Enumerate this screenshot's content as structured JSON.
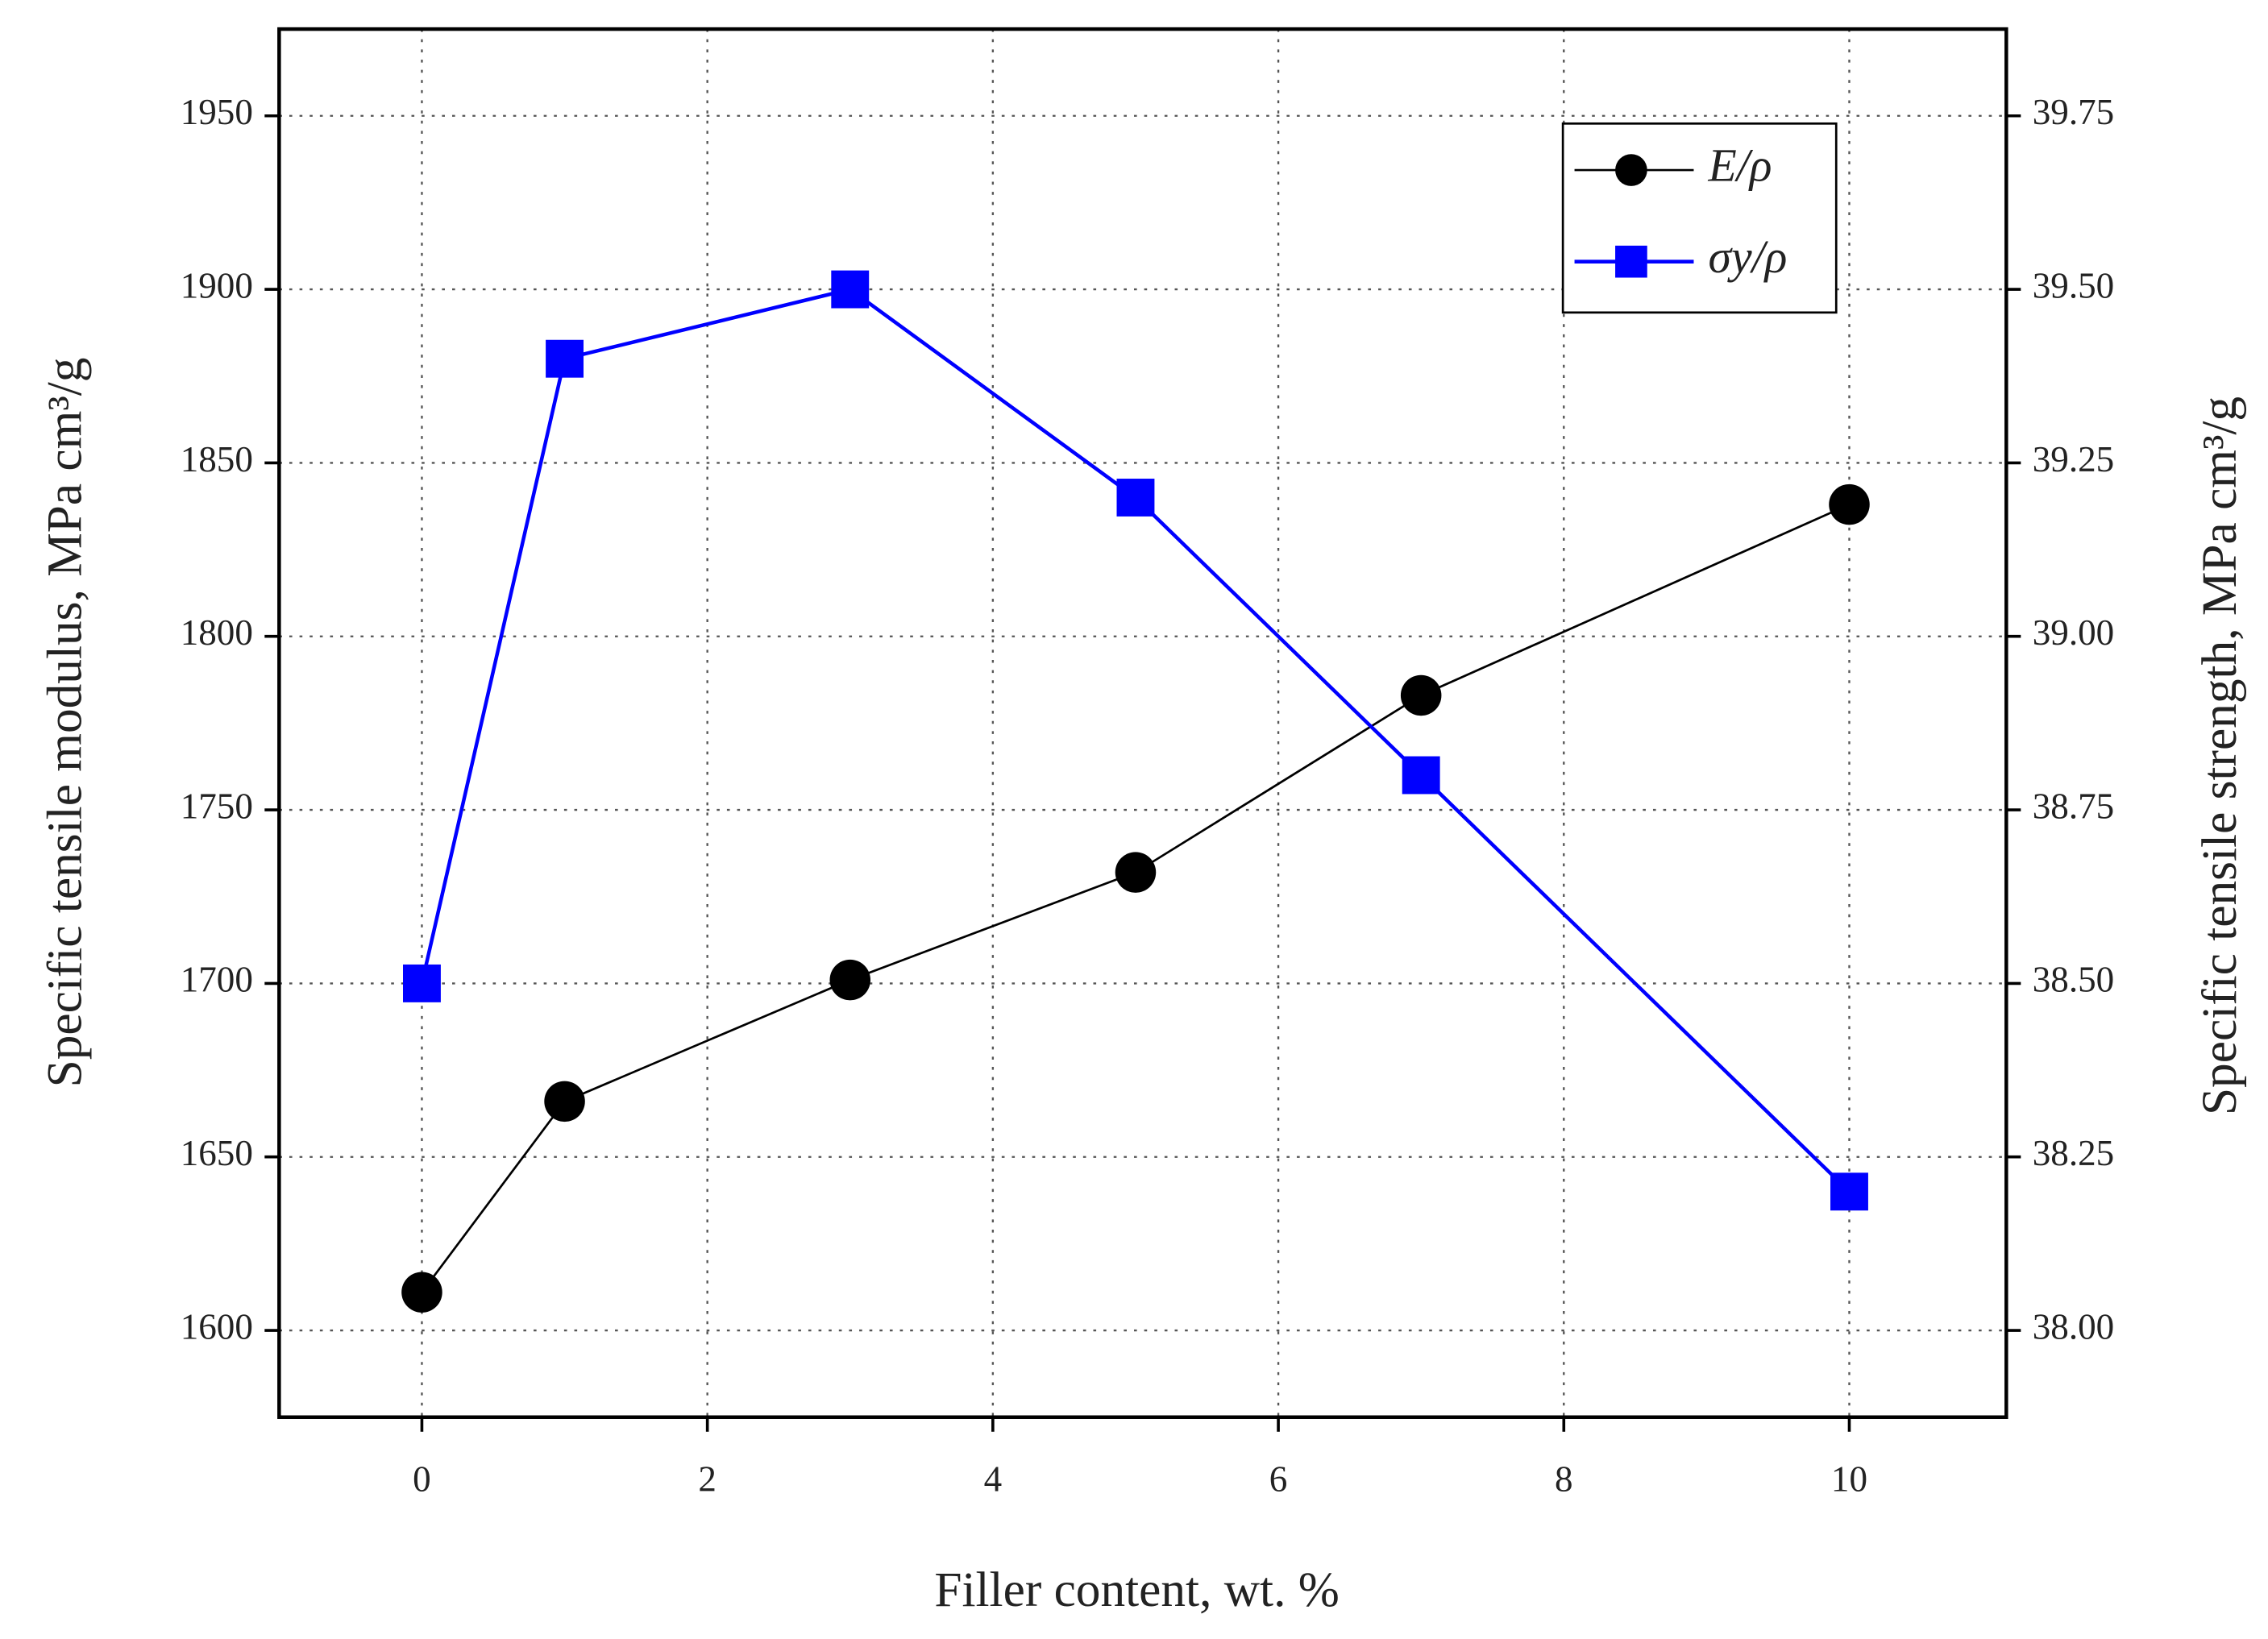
{
  "chart_data": {
    "type": "line",
    "x_label": "Filler content, wt. %",
    "y_label": "Specific tensile modulus, MPa cm³/g",
    "y2_label": "Specific tensile strength, MPa cm³/g",
    "x": [
      0,
      1,
      3,
      5,
      7,
      10
    ],
    "series": [
      {
        "name": "E/ρ",
        "color": "#000000",
        "marker": "circle",
        "values": [
          1611,
          1666,
          1701,
          1732,
          1783,
          1838
        ]
      },
      {
        "name": "σy/ρ",
        "color": "#0000ff",
        "marker": "square",
        "axis": "y2",
        "values": [
          38.5,
          39.4,
          39.5,
          39.2,
          38.8,
          38.2
        ]
      }
    ],
    "xlim": [
      -1,
      11.1
    ],
    "xticks": [
      0,
      2,
      4,
      6,
      8,
      10
    ],
    "ylim": [
      1575,
      1975
    ],
    "yticks": [
      1600,
      1650,
      1700,
      1750,
      1800,
      1850,
      1900,
      1950
    ],
    "y2lim": [
      37.875,
      39.875
    ],
    "y2ticks": [
      {
        "value": 38,
        "label": "38.00"
      },
      38.25,
      {
        "value": 38.5,
        "label": "38.50"
      },
      38.75,
      {
        "value": 39,
        "label": "39.00"
      },
      39.25,
      {
        "value": 39.5,
        "label": "39.50"
      },
      39.75
    ],
    "grid": true,
    "legend": "upper right"
  }
}
